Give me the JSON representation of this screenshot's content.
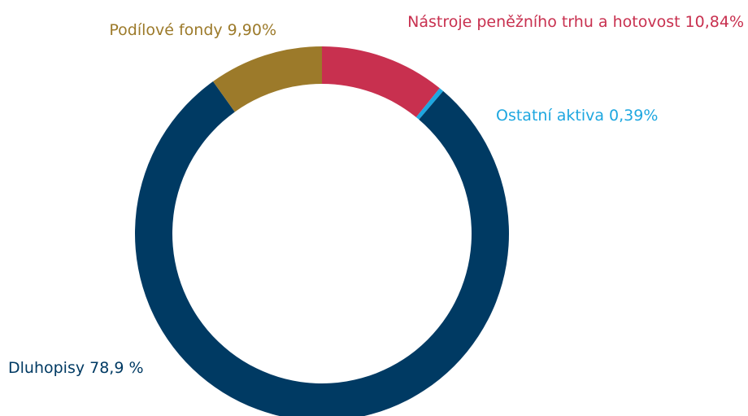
{
  "chart_data": {
    "type": "donut",
    "categories": [
      "Nástroje peněžního trhu a hotovost",
      "Ostatní aktiva",
      "Dluhopisy",
      "Podílové fondy"
    ],
    "values": [
      10.84,
      0.39,
      78.9,
      9.9
    ],
    "value_labels": [
      "10,84%",
      "0,39%",
      "78,9 %",
      "9,90%"
    ],
    "colors": [
      "#c8304f",
      "#1ea7e0",
      "#003a63",
      "#9c7a2a"
    ]
  }
}
